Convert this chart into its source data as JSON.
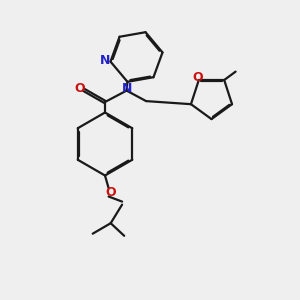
{
  "bg_color": "#efefef",
  "bond_color": "#1a1a1a",
  "N_color": "#2222cc",
  "O_color": "#cc1111",
  "lw": 1.6,
  "dbo": 0.04,
  "fs": 8.5,
  "figsize": [
    3.0,
    3.0
  ],
  "dpi": 100,
  "xlim": [
    0,
    10
  ],
  "ylim": [
    0,
    10
  ]
}
